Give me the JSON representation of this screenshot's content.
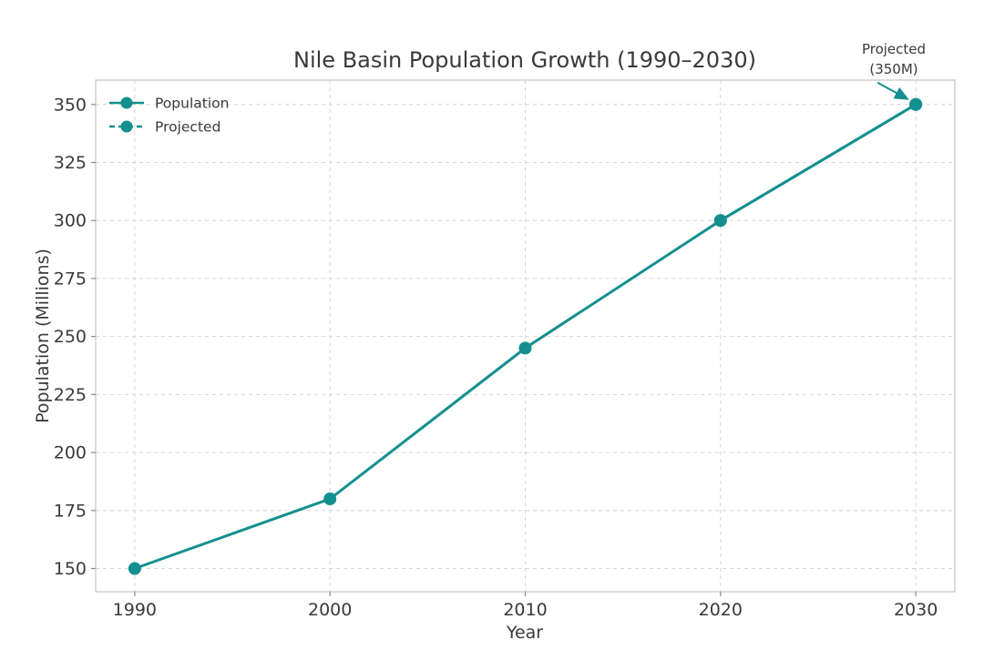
{
  "chart_data": {
    "type": "line",
    "title": "Nile Basin Population Growth (1990–2030)",
    "xlabel": "Year",
    "ylabel": "Population (Millions)",
    "x": [
      1990,
      2000,
      2010,
      2020,
      2030
    ],
    "series": [
      {
        "name": "Population",
        "style": "solid",
        "x": [
          1990,
          2000,
          2010,
          2020,
          2030
        ],
        "values": [
          150,
          180,
          245,
          300,
          350
        ]
      },
      {
        "name": "Projected",
        "style": "dashed",
        "x": [
          2020,
          2030
        ],
        "values": [
          300,
          350
        ]
      }
    ],
    "xticks": [
      1990,
      2000,
      2010,
      2020,
      2030
    ],
    "yticks": [
      150,
      175,
      200,
      225,
      250,
      275,
      300,
      325,
      350
    ],
    "xlim": [
      1988,
      2032
    ],
    "ylim": [
      140,
      360.5
    ],
    "grid": true,
    "legend_position": "upper-left",
    "legend_entries": [
      "Population",
      "Projected"
    ],
    "annotation": {
      "text": "Projected\n(350M)",
      "target": {
        "x": 2030,
        "y": 350
      }
    },
    "colors": {
      "line": "#148f8f",
      "grid": "#d6d6d6",
      "spine": "#c9c9c9",
      "tick": "#8a8a8a",
      "text": "#3a3a3a"
    }
  }
}
